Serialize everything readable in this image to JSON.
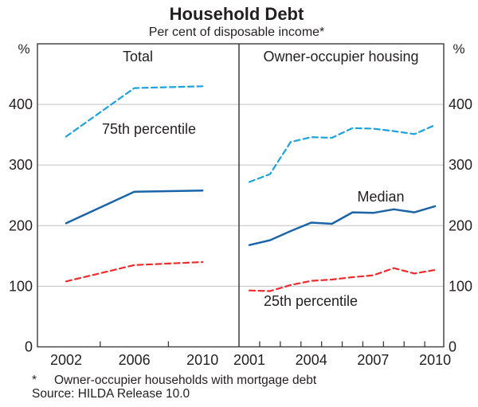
{
  "title": "Household Debt",
  "subtitle": "Per cent of disposable income*",
  "footnote": {
    "marker": "*",
    "text": "Owner-occupier households with mortgage debt"
  },
  "source": "Source: HILDA Release 10.0",
  "y_axis": {
    "unit": "%",
    "min": 0,
    "max": 500,
    "ticks": [
      0,
      100,
      200,
      300,
      400
    ]
  },
  "colors": {
    "p75": "#1ca3db",
    "median": "#1b64a8",
    "p25": "#ef2b2d",
    "grid": "#c9c9c9",
    "frame": "#3c3c3c",
    "text": "#231f20"
  },
  "chart_data": [
    {
      "type": "line",
      "panel": "left",
      "title": "Total",
      "x": [
        2002,
        2006,
        2010
      ],
      "x_axis_labels": [
        {
          "year": 2002,
          "label": "2002"
        },
        {
          "year": 2006,
          "label": "2006"
        },
        {
          "year": 2010,
          "label": "2010"
        }
      ],
      "x_minor_ticks": [
        2004,
        2008
      ],
      "ylim": [
        0,
        500
      ],
      "series": [
        {
          "name": "75th percentile",
          "style": "dashed",
          "color_key": "p75",
          "values": [
            347,
            427,
            430
          ]
        },
        {
          "name": "Median",
          "style": "solid",
          "color_key": "median",
          "values": [
            204,
            256,
            258
          ]
        },
        {
          "name": "25th percentile",
          "style": "dashed",
          "color_key": "p25",
          "values": [
            108,
            135,
            140
          ]
        }
      ],
      "labels": [
        {
          "text": "75th percentile",
          "series": "75th percentile"
        }
      ]
    },
    {
      "type": "line",
      "panel": "right",
      "title": "Owner-occupier housing",
      "x": [
        2001,
        2002,
        2003,
        2004,
        2005,
        2006,
        2007,
        2008,
        2009,
        2010
      ],
      "x_axis_labels": [
        {
          "year": 2001,
          "label": "2001"
        },
        {
          "year": 2004,
          "label": "2004"
        },
        {
          "year": 2007,
          "label": "2007"
        },
        {
          "year": 2010,
          "label": "2010"
        }
      ],
      "x_minor_ticks": [
        2001.5,
        2002.5,
        2003.5,
        2004.5,
        2005.5,
        2006.5,
        2007.5,
        2008.5,
        2009.5
      ],
      "ylim": [
        0,
        500
      ],
      "series": [
        {
          "name": "75th percentile",
          "style": "dashed",
          "color_key": "p75",
          "values": [
            272,
            285,
            338,
            346,
            345,
            361,
            360,
            356,
            351,
            366
          ]
        },
        {
          "name": "Median",
          "style": "solid",
          "color_key": "median",
          "values": [
            168,
            176,
            191,
            205,
            203,
            222,
            221,
            227,
            222,
            232
          ]
        },
        {
          "name": "25th percentile",
          "style": "dashed",
          "color_key": "p25",
          "values": [
            93,
            92,
            102,
            109,
            111,
            115,
            118,
            130,
            121,
            127
          ]
        }
      ],
      "labels": [
        {
          "text": "Median",
          "series": "Median"
        },
        {
          "text": "25th percentile",
          "series": "25th percentile"
        }
      ]
    }
  ]
}
